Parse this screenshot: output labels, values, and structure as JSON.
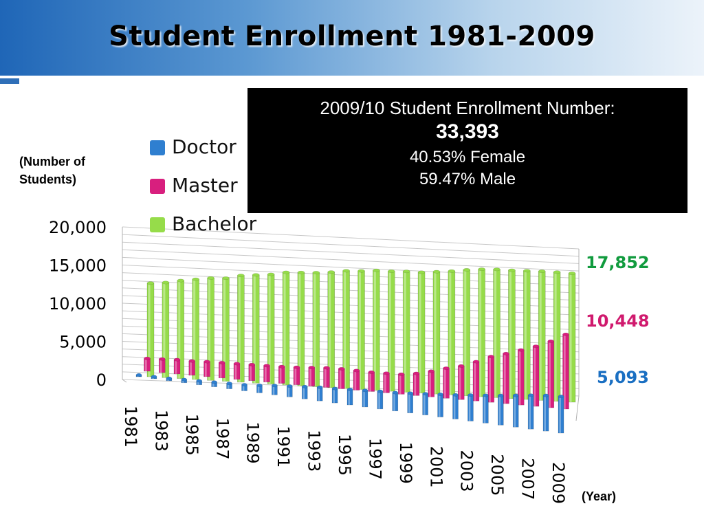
{
  "slide": {
    "title": "Student Enrollment 1981-2009"
  },
  "info_box": {
    "line1": "2009/10 Student Enrollment Number:",
    "total": "33,393",
    "female": "40.53% Female",
    "male": "59.47% Male"
  },
  "axis_labels": {
    "y": "(Number of Students)",
    "x": "(Year)"
  },
  "end_labels": {
    "bachelor": "17,852",
    "master": "10,448",
    "doctor": "5,093"
  },
  "colors": {
    "doctor": "#2f7fd0",
    "master": "#d81f7e",
    "bachelor": "#96dc4a",
    "bachelor_label": "#119b3e",
    "master_label": "#d01a6e",
    "doctor_label": "#1a6fc2"
  },
  "chart_data": {
    "type": "bar",
    "style": "3d-cylinder",
    "categories": [
      "1981",
      "1982",
      "1983",
      "1984",
      "1985",
      "1986",
      "1987",
      "1988",
      "1989",
      "1990",
      "1991",
      "1992",
      "1993",
      "1994",
      "1995",
      "1996",
      "1997",
      "1998",
      "1999",
      "2000",
      "2001",
      "2002",
      "2003",
      "2004",
      "2005",
      "2006",
      "2007",
      "2008",
      "2009"
    ],
    "tick_labels": [
      "1981",
      "1983",
      "1985",
      "1987",
      "1989",
      "1991",
      "1993",
      "1995",
      "1997",
      "1999",
      "2001",
      "2003",
      "2005",
      "2007",
      "2009"
    ],
    "yticks": [
      "0",
      "5,000",
      "10,000",
      "15,000",
      "20,000"
    ],
    "ylim": [
      0,
      20000
    ],
    "grid": true,
    "legend": "top-left",
    "series": [
      {
        "name": "Doctor",
        "values": [
          250,
          300,
          350,
          450,
          550,
          650,
          750,
          850,
          1050,
          1300,
          1500,
          1700,
          1900,
          2000,
          2150,
          2300,
          2450,
          2550,
          2750,
          2950,
          3150,
          3350,
          3600,
          3850,
          4100,
          4400,
          4700,
          4950,
          5093
        ]
      },
      {
        "name": "Master",
        "values": [
          1800,
          1900,
          2000,
          2000,
          2100,
          2150,
          2200,
          2250,
          2300,
          2350,
          2450,
          2600,
          2750,
          2800,
          2750,
          2700,
          2750,
          2800,
          3100,
          3600,
          4200,
          4700,
          5500,
          6400,
          7000,
          7700,
          8400,
          9300,
          10448
        ]
      },
      {
        "name": "Bachelor",
        "values": [
          13100,
          13300,
          13700,
          14000,
          14300,
          14400,
          14900,
          15100,
          15300,
          15700,
          15800,
          15900,
          16100,
          16400,
          16500,
          16700,
          16700,
          16800,
          16800,
          17000,
          17200,
          17500,
          17700,
          17800,
          17800,
          17850,
          17900,
          17900,
          17852
        ]
      }
    ]
  }
}
